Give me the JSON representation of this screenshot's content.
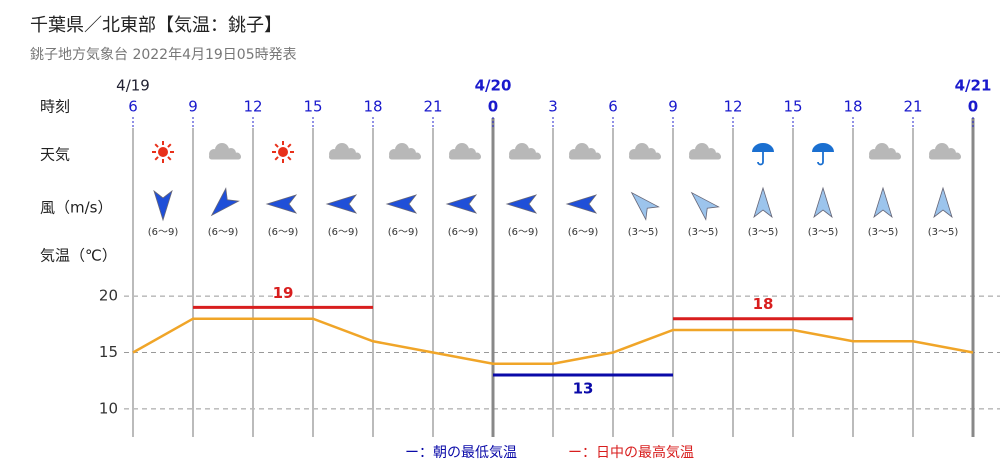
{
  "title": "千葉県／北東部【気温：銚子】",
  "subtitle": "銚子地方気象台 2022年4月19日05時発表",
  "row_labels": {
    "time": "時刻",
    "weather": "天気",
    "wind": "風（m/s）",
    "temp": "気温（℃）"
  },
  "chart_data": {
    "type": "line",
    "categories": [
      "6",
      "9",
      "12",
      "15",
      "18",
      "21",
      "0",
      "3",
      "6",
      "9",
      "12",
      "15",
      "18",
      "21",
      "0"
    ],
    "dates": [
      {
        "label": "4/19",
        "at": 0,
        "bold": false
      },
      {
        "label": "4/20",
        "at": 6,
        "bold": true
      },
      {
        "label": "4/21",
        "at": 14,
        "bold": true
      }
    ],
    "weather": [
      "sunny",
      "cloudy",
      "sunny",
      "cloudy",
      "cloudy",
      "cloudy",
      "cloudy",
      "cloudy",
      "cloudy",
      "cloudy",
      "rain",
      "rain",
      "cloudy",
      "cloudy"
    ],
    "wind": [
      {
        "label": "(6～9)",
        "direction": 180,
        "color": "#1f4fd8"
      },
      {
        "label": "(6～9)",
        "direction": 225,
        "color": "#1f4fd8"
      },
      {
        "label": "(6～9)",
        "direction": 270,
        "color": "#1f4fd8"
      },
      {
        "label": "(6～9)",
        "direction": 270,
        "color": "#1f4fd8"
      },
      {
        "label": "(6～9)",
        "direction": 270,
        "color": "#1f4fd8"
      },
      {
        "label": "(6～9)",
        "direction": 270,
        "color": "#1f4fd8"
      },
      {
        "label": "(6～9)",
        "direction": 270,
        "color": "#1f4fd8"
      },
      {
        "label": "(6～9)",
        "direction": 270,
        "color": "#1f4fd8"
      },
      {
        "label": "(3～5)",
        "direction": 315,
        "color": "#9cc4ec"
      },
      {
        "label": "(3～5)",
        "direction": 315,
        "color": "#9cc4ec"
      },
      {
        "label": "(3～5)",
        "direction": 0,
        "color": "#9cc4ec"
      },
      {
        "label": "(3～5)",
        "direction": 0,
        "color": "#9cc4ec"
      },
      {
        "label": "(3～5)",
        "direction": 0,
        "color": "#9cc4ec"
      },
      {
        "label": "(3～5)",
        "direction": 0,
        "color": "#9cc4ec"
      }
    ],
    "series": [
      {
        "color": "#f0a528",
        "values": [
          15,
          18,
          18,
          18,
          16,
          15,
          14,
          14,
          15,
          17,
          17,
          17,
          16,
          16,
          15
        ]
      }
    ],
    "lows": {
      "name": "ー：朝の最低気温",
      "color": "#0a0aa8",
      "segments": [
        {
          "value": 13,
          "start": 6,
          "end": 9
        }
      ]
    },
    "highs": {
      "name": "ー：日中の最高気温",
      "color": "#d81e1e",
      "segments": [
        {
          "value": 19,
          "start": 1,
          "end": 4
        },
        {
          "value": 18,
          "start": 9,
          "end": 12
        }
      ]
    },
    "ylim": [
      7.5,
      22.5
    ],
    "yticks": [
      10,
      15,
      20
    ],
    "grid": true
  }
}
